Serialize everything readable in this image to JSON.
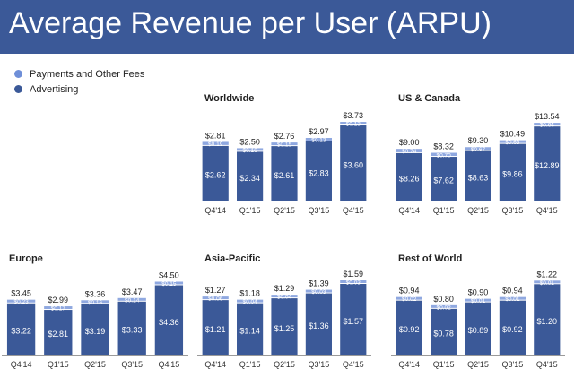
{
  "header": {
    "title": "Average Revenue per User (ARPU)"
  },
  "legend": [
    {
      "label": "Payments and Other Fees",
      "color": "#6f8fd8"
    },
    {
      "label": "Advertising",
      "color": "#3b5998"
    }
  ],
  "colors": {
    "banner": "#3b5998",
    "advertising": "#3b5998",
    "payments": "#8fa8e0",
    "axis": "#9a9a9a"
  },
  "chart_data": [
    {
      "type": "bar",
      "title": "Worldwide",
      "categories": [
        "Q4'14",
        "Q1'15",
        "Q2'15",
        "Q3'15",
        "Q4'15"
      ],
      "totals": [
        "$2.81",
        "$2.50",
        "$2.76",
        "$2.97",
        "$3.73"
      ],
      "series": [
        {
          "name": "Advertising",
          "values": [
            2.62,
            2.34,
            2.61,
            2.83,
            3.6
          ],
          "labels": [
            "$2.62",
            "$2.34",
            "$2.61",
            "$2.83",
            "$3.60"
          ]
        },
        {
          "name": "Payments and Other Fees",
          "values": [
            0.19,
            0.16,
            0.15,
            0.13,
            0.13
          ],
          "labels": [
            "$0.19",
            "$0.16",
            "$0.15",
            "$0.13",
            "$0.13"
          ]
        }
      ]
    },
    {
      "type": "bar",
      "title": "US & Canada",
      "categories": [
        "Q4'14",
        "Q1'15",
        "Q2'15",
        "Q3'15",
        "Q4'15"
      ],
      "totals": [
        "$9.00",
        "$8.32",
        "$9.30",
        "$10.49",
        "$13.54"
      ],
      "series": [
        {
          "name": "Advertising",
          "values": [
            8.26,
            7.62,
            8.63,
            9.86,
            12.89
          ],
          "labels": [
            "$8.26",
            "$7.62",
            "$8.63",
            "$9.86",
            "$12.89"
          ]
        },
        {
          "name": "Payments and Other Fees",
          "values": [
            0.74,
            0.7,
            0.67,
            0.63,
            0.64
          ],
          "labels": [
            "$0.74",
            "$0.70",
            "$0.67",
            "$0.63",
            "$0.64"
          ]
        }
      ]
    },
    {
      "type": "bar",
      "title": "Europe",
      "categories": [
        "Q4'14",
        "Q1'15",
        "Q2'15",
        "Q3'15",
        "Q4'15"
      ],
      "totals": [
        "$3.45",
        "$2.99",
        "$3.36",
        "$3.47",
        "$4.50"
      ],
      "series": [
        {
          "name": "Advertising",
          "values": [
            3.22,
            2.81,
            3.19,
            3.33,
            4.36
          ],
          "labels": [
            "$3.22",
            "$2.81",
            "$3.19",
            "$3.33",
            "$4.36"
          ]
        },
        {
          "name": "Payments and Other Fees",
          "values": [
            0.23,
            0.17,
            0.16,
            0.14,
            0.15
          ],
          "labels": [
            "$0.23",
            "$0.17",
            "$0.16",
            "$0.14",
            "$0.15"
          ]
        }
      ]
    },
    {
      "type": "bar",
      "title": "Asia-Pacific",
      "categories": [
        "Q4'14",
        "Q1'15",
        "Q2'15",
        "Q3'15",
        "Q4'15"
      ],
      "totals": [
        "$1.27",
        "$1.18",
        "$1.29",
        "$1.39",
        "$1.59"
      ],
      "series": [
        {
          "name": "Advertising",
          "values": [
            1.21,
            1.14,
            1.25,
            1.36,
            1.57
          ],
          "labels": [
            "$1.21",
            "$1.14",
            "$1.25",
            "$1.36",
            "$1.57"
          ]
        },
        {
          "name": "Payments and Other Fees",
          "values": [
            0.06,
            0.04,
            0.04,
            0.03,
            0.03
          ],
          "labels": [
            "$0.06",
            "$0.04",
            "$0.04",
            "$0.03",
            "$0.03"
          ]
        }
      ]
    },
    {
      "type": "bar",
      "title": "Rest of World",
      "categories": [
        "Q4'14",
        "Q1'15",
        "Q2'15",
        "Q3'15",
        "Q4'15"
      ],
      "totals": [
        "$0.94",
        "$0.80",
        "$0.90",
        "$0.94",
        "$1.22"
      ],
      "series": [
        {
          "name": "Advertising",
          "values": [
            0.92,
            0.78,
            0.89,
            0.92,
            1.2
          ],
          "labels": [
            "$0.92",
            "$0.78",
            "$0.89",
            "$0.92",
            "$1.20"
          ]
        },
        {
          "name": "Payments and Other Fees",
          "values": [
            0.02,
            0.02,
            0.01,
            0.01,
            0.01
          ],
          "labels": [
            "$0.02",
            "$0.02",
            "$0.01",
            "$0.01",
            "$0.01"
          ]
        }
      ]
    }
  ]
}
